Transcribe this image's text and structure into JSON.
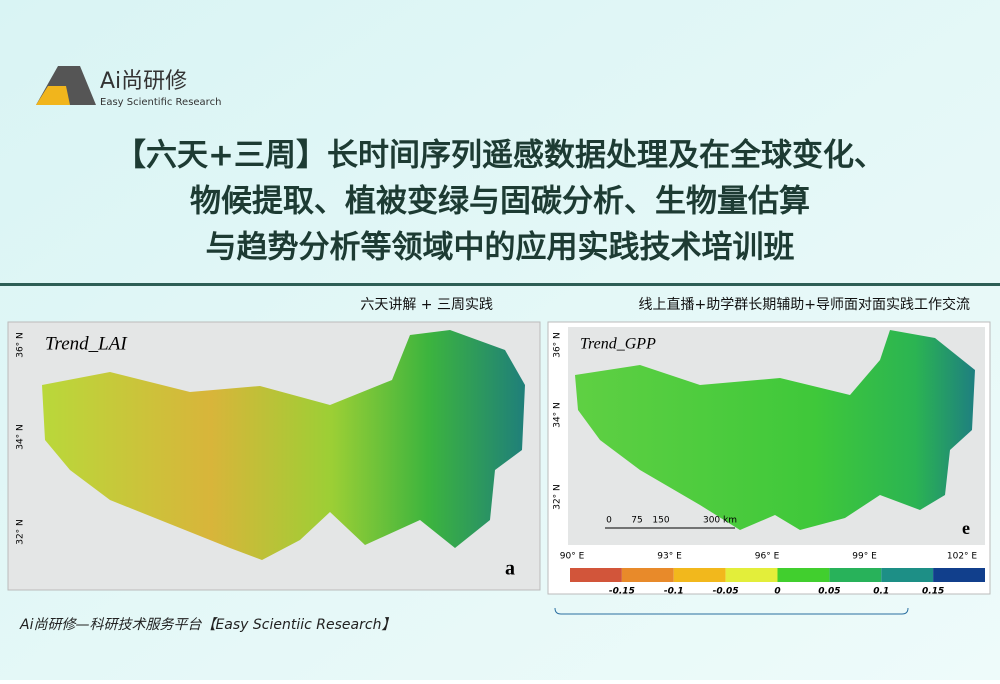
{
  "logo": {
    "name": "Ai尚研修",
    "tagline": "Easy Scientific Research"
  },
  "title": {
    "lines": [
      "【六天+三周】长时间序列遥感数据处理及在全球变化、",
      "物候提取、植被变绿与固碳分析、生物量估算",
      "与趋势分析等领域中的应用实践技术培训班"
    ]
  },
  "subtitle": {
    "left": "六天讲解 + 三周实践",
    "right": "线上直播+助学群长期辅助+导师面对面实践工作交流"
  },
  "panels": [
    {
      "label": "Trend_LAI",
      "letter": "a",
      "lat_labels": [
        "36° N",
        "34° N",
        "32° N"
      ]
    },
    {
      "label": "Trend_GPP",
      "letter": "e",
      "lat_labels": [
        "36° N",
        "34° N",
        "32° N"
      ],
      "lon_labels": [
        "90° E",
        "93° E",
        "96° E",
        "99° E",
        "102° E"
      ],
      "scale_labels": [
        "0",
        "75",
        "150",
        "300 km"
      ]
    }
  ],
  "colorbar": {
    "colors": [
      "#d2553a",
      "#e88a2a",
      "#f2b81c",
      "#e3ee3a",
      "#41cf2e",
      "#28b25a",
      "#1d8f86",
      "#113f8c"
    ],
    "labels": [
      "-0.15",
      "-0.1",
      "-0.05",
      "0",
      "0.05",
      "0.1",
      "0.15"
    ]
  },
  "footer": "Ai尚研修—科研技术服务平台【Easy Scientiic Research】"
}
